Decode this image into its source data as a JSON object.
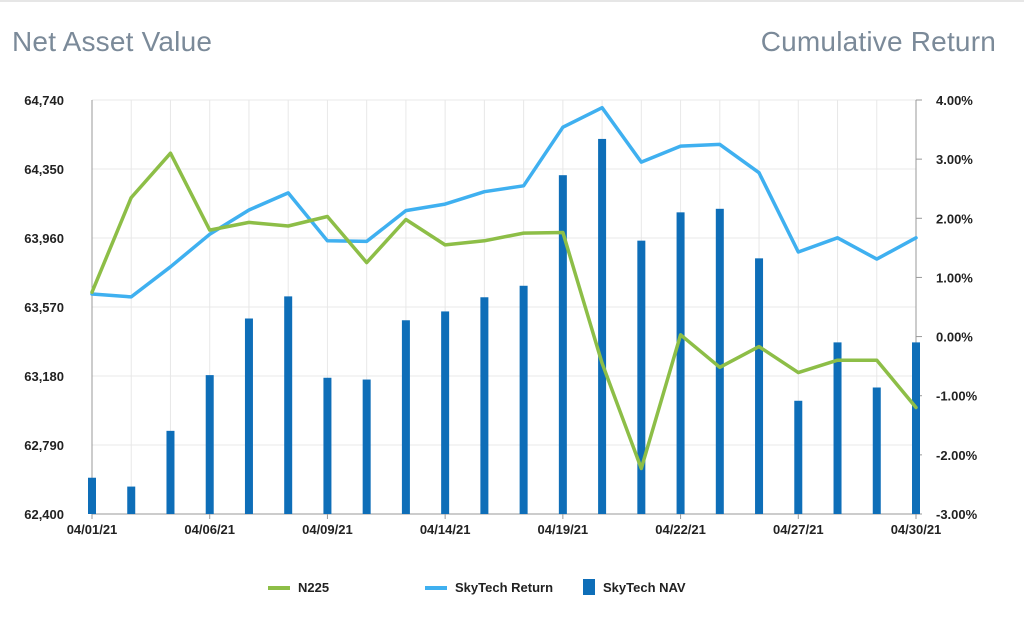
{
  "header": {
    "left_title": "Net Asset Value",
    "right_title": "Cumulative Return"
  },
  "colors": {
    "nav_bar": "#0e6eb8",
    "skytech_return": "#3fb0f0",
    "n225": "#8dbe47",
    "grid": "#e8e8e8",
    "axis": "#999999"
  },
  "chart_data": {
    "type": "bar+line",
    "y_left": {
      "label": "",
      "ticks": [
        "64,740",
        "64,350",
        "63,960",
        "63,570",
        "63,180",
        "62,790",
        "62,400"
      ],
      "range": [
        62400,
        64740
      ]
    },
    "y_right": {
      "label": "",
      "ticks": [
        "4.00%",
        "3.00%",
        "2.00%",
        "1.00%",
        "0.00%",
        "-1.00%",
        "-2.00%",
        "-3.00%"
      ],
      "range": [
        -3,
        4
      ]
    },
    "x_tick_labels": [
      "04/01/21",
      "04/06/21",
      "04/09/21",
      "04/14/21",
      "04/19/21",
      "04/22/21",
      "04/27/21",
      "04/30/21"
    ],
    "x_tick_indices": [
      0,
      3,
      6,
      9,
      12,
      15,
      18,
      21
    ],
    "num_points": 22,
    "series": [
      {
        "name": "SkyTech NAV",
        "kind": "bar",
        "axis": "left",
        "values": [
          62605,
          62555,
          62870,
          63185,
          63505,
          63630,
          63170,
          63160,
          63495,
          63545,
          63625,
          63690,
          64315,
          64520,
          63945,
          64105,
          64125,
          63845,
          63040,
          63370,
          63115,
          63370
        ]
      },
      {
        "name": "SkyTech Return",
        "kind": "line",
        "axis": "right",
        "values": [
          0.72,
          0.67,
          1.18,
          1.73,
          2.14,
          2.43,
          1.62,
          1.61,
          2.13,
          2.24,
          2.45,
          2.55,
          3.54,
          3.87,
          2.95,
          3.22,
          3.25,
          2.77,
          1.43,
          1.67,
          1.31,
          1.67
        ]
      },
      {
        "name": "N225",
        "kind": "line",
        "axis": "right",
        "values": [
          0.75,
          2.35,
          3.1,
          1.8,
          1.93,
          1.87,
          2.03,
          1.25,
          1.98,
          1.55,
          1.62,
          1.75,
          1.76,
          -0.45,
          -2.23,
          0.03,
          -0.52,
          -0.17,
          -0.61,
          -0.4,
          -0.4,
          -1.2
        ]
      }
    ],
    "legend": {
      "position": "bottom",
      "items": [
        "N225",
        "SkyTech Return",
        "SkyTech NAV"
      ]
    },
    "grid": true
  }
}
